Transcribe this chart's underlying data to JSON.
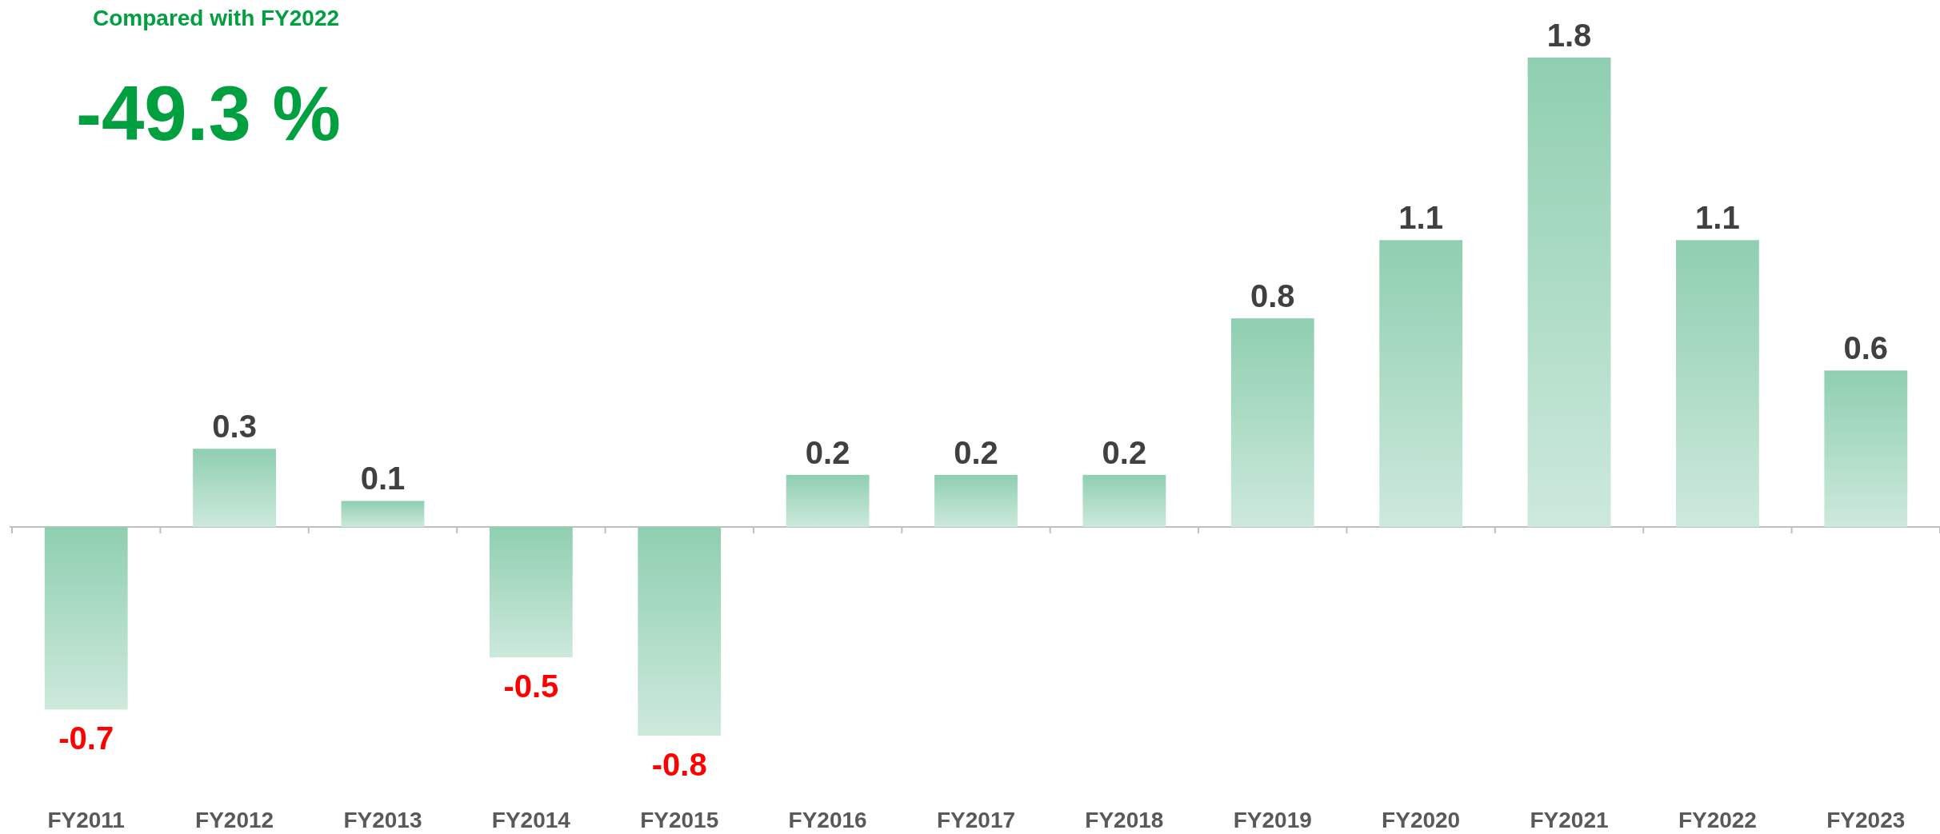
{
  "chart_data": {
    "type": "bar",
    "categories": [
      "FY2011",
      "FY2012",
      "FY2013",
      "FY2014",
      "FY2015",
      "FY2016",
      "FY2017",
      "FY2018",
      "FY2019",
      "FY2020",
      "FY2021",
      "FY2022",
      "FY2023"
    ],
    "values": [
      -0.7,
      0.3,
      0.1,
      -0.5,
      -0.8,
      0.2,
      0.2,
      0.2,
      0.8,
      1.1,
      1.8,
      1.1,
      0.6
    ],
    "color": "#8fcfb1",
    "data_labels": true,
    "annotations": [
      "Compared with FY2022",
      "-49.3 %"
    ]
  }
}
